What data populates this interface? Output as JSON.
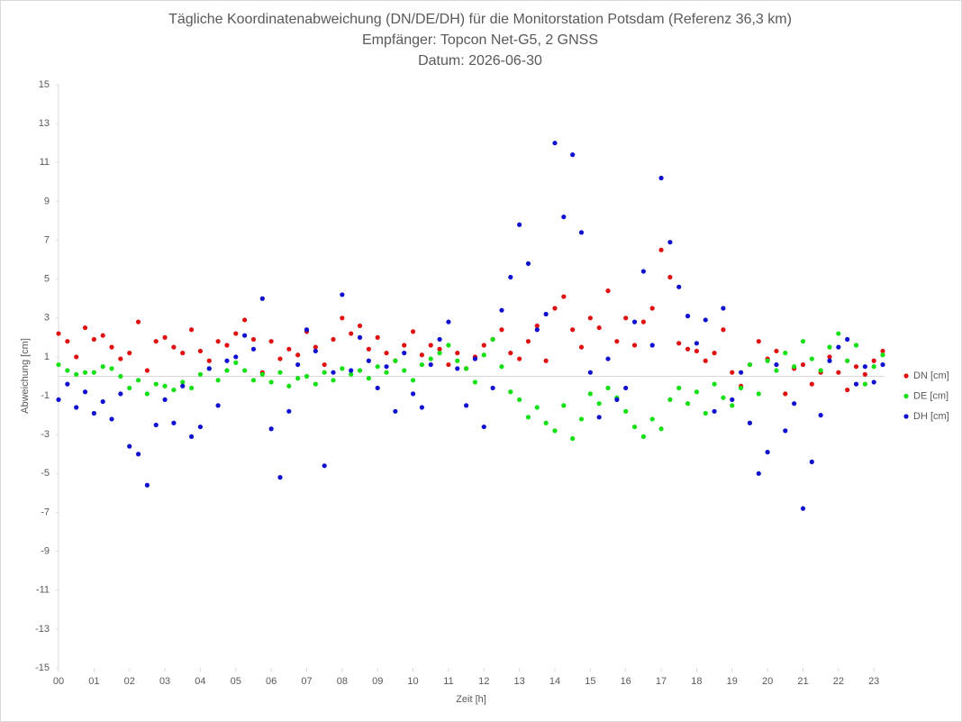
{
  "chart_data": {
    "type": "scatter",
    "title": "Tägliche Koordinatenabweichung (DN/DE/DH) für die Monitorstation Potsdam (Referenz 36,3 km)",
    "subtitle": "Empfänger: Topcon Net-G5, 2 GNSS",
    "date": "Datum: 2026-06-30",
    "x_label": "Zeit [h]",
    "y_label": "Abweichung [cm]",
    "x": [
      0,
      0.25,
      0.5,
      0.75,
      1,
      1.25,
      1.5,
      1.75,
      2,
      2.25,
      2.5,
      2.75,
      3,
      3.25,
      3.5,
      3.75,
      4,
      4.25,
      4.5,
      4.75,
      5,
      5.25,
      5.5,
      5.75,
      6,
      6.25,
      6.5,
      6.75,
      7,
      7.25,
      7.5,
      7.75,
      8,
      8.25,
      8.5,
      8.75,
      9,
      9.25,
      9.5,
      9.75,
      10,
      10.25,
      10.5,
      10.75,
      11,
      11.25,
      11.5,
      11.75,
      12,
      12.25,
      12.5,
      12.75,
      13,
      13.25,
      13.5,
      13.75,
      14,
      14.25,
      14.5,
      14.75,
      15,
      15.25,
      15.5,
      15.75,
      16,
      16.25,
      16.5,
      16.75,
      17,
      17.25,
      17.5,
      17.75,
      18,
      18.25,
      18.5,
      18.75,
      19,
      19.25,
      19.5,
      19.75,
      20,
      20.25,
      20.5,
      20.75,
      21,
      21.25,
      21.5,
      21.75,
      22,
      22.25,
      22.5,
      22.75,
      23,
      23.25
    ],
    "series": [
      {
        "name": "DN [cm]",
        "color": "#e01010",
        "values": [
          2.2,
          1.8,
          1.0,
          2.5,
          1.9,
          2.1,
          1.5,
          0.9,
          1.2,
          2.8,
          0.3,
          1.8,
          2.0,
          1.5,
          1.2,
          2.4,
          1.3,
          0.8,
          1.8,
          1.6,
          2.2,
          2.9,
          1.9,
          0.2,
          1.8,
          0.9,
          1.4,
          1.1,
          2.3,
          1.5,
          0.6,
          1.9,
          3.0,
          2.2,
          2.6,
          1.4,
          2.0,
          1.2,
          0.8,
          1.6,
          2.3,
          1.1,
          1.6,
          1.4,
          0.6,
          1.2,
          0.4,
          1.0,
          1.6,
          1.9,
          2.4,
          1.2,
          0.9,
          1.8,
          2.6,
          0.8,
          3.5,
          4.1,
          2.4,
          1.5,
          3.0,
          2.5,
          4.4,
          1.8,
          3.0,
          1.6,
          2.8,
          3.5,
          6.5,
          5.1,
          1.7,
          1.4,
          1.3,
          0.8,
          1.2,
          2.4,
          0.2,
          -0.5,
          0.6,
          1.8,
          0.9,
          1.3,
          -0.9,
          0.4,
          0.6,
          -0.4,
          0.2,
          1.0,
          0.2,
          -0.7,
          0.5,
          0.1,
          0.8,
          1.3
        ]
      },
      {
        "name": "DE [cm]",
        "color": "#10e010",
        "values": [
          0.6,
          0.3,
          0.1,
          0.2,
          0.2,
          0.5,
          0.4,
          0.0,
          -0.6,
          -0.2,
          -0.9,
          -0.4,
          -0.5,
          -0.7,
          -0.3,
          -0.6,
          0.1,
          0.4,
          -0.2,
          0.3,
          0.7,
          0.3,
          -0.2,
          0.1,
          -0.3,
          0.2,
          -0.5,
          -0.1,
          0.0,
          -0.4,
          0.2,
          -0.2,
          0.4,
          0.1,
          0.3,
          -0.1,
          0.5,
          0.2,
          0.8,
          0.3,
          -0.2,
          0.6,
          0.9,
          1.2,
          1.6,
          0.8,
          0.4,
          -0.3,
          1.1,
          1.9,
          0.5,
          -0.8,
          -1.2,
          -2.1,
          -1.6,
          -2.4,
          -2.8,
          -1.5,
          -3.2,
          -2.2,
          -0.9,
          -1.4,
          -0.6,
          -1.1,
          -1.8,
          -2.6,
          -3.1,
          -2.2,
          -2.7,
          -1.2,
          -0.6,
          -1.4,
          -0.8,
          -1.9,
          -0.4,
          -1.1,
          -1.5,
          -0.6,
          0.6,
          -0.9,
          0.8,
          0.3,
          1.2,
          0.5,
          1.8,
          0.9,
          0.3,
          1.5,
          2.2,
          0.8,
          1.6,
          -0.4,
          0.5,
          1.1
        ]
      },
      {
        "name": "DH [cm]",
        "color": "#1010d0",
        "values": [
          -1.2,
          -0.4,
          -1.6,
          -0.8,
          -1.9,
          -1.3,
          -2.2,
          -0.9,
          -3.6,
          -4.0,
          -5.6,
          -2.5,
          -1.2,
          -2.4,
          -0.5,
          -3.1,
          -2.6,
          0.4,
          -1.5,
          0.8,
          1.0,
          2.1,
          1.4,
          4.0,
          -2.7,
          -5.2,
          -1.8,
          0.6,
          2.4,
          1.3,
          -4.6,
          0.2,
          4.2,
          0.3,
          2.0,
          0.8,
          -0.6,
          0.5,
          -1.8,
          1.2,
          -0.9,
          -1.6,
          0.6,
          1.9,
          2.8,
          0.4,
          -1.5,
          0.9,
          -2.6,
          -0.6,
          3.4,
          5.1,
          7.8,
          5.8,
          2.4,
          3.2,
          12.0,
          8.2,
          11.4,
          7.4,
          0.2,
          -2.1,
          0.9,
          -1.2,
          -0.6,
          2.8,
          5.4,
          1.6,
          10.2,
          6.9,
          4.6,
          3.1,
          1.7,
          2.9,
          -1.8,
          3.5,
          -1.2,
          0.2,
          -2.4,
          -5.0,
          -3.9,
          0.6,
          -2.8,
          -1.4,
          -6.8,
          -4.4,
          -2.0,
          0.8,
          1.5,
          1.9,
          -0.4,
          0.5,
          -0.3,
          0.6
        ]
      }
    ],
    "xlim": [
      0,
      23.3
    ],
    "xticks": [
      {
        "value": 0,
        "label": "00"
      },
      {
        "value": 1,
        "label": "01"
      },
      {
        "value": 2,
        "label": "02"
      },
      {
        "value": 3,
        "label": "03"
      },
      {
        "value": 4,
        "label": "04"
      },
      {
        "value": 5,
        "label": "05"
      },
      {
        "value": 6,
        "label": "06"
      },
      {
        "value": 7,
        "label": "07"
      },
      {
        "value": 8,
        "label": "08"
      },
      {
        "value": 9,
        "label": "09"
      },
      10,
      11,
      12,
      13,
      14,
      15,
      16,
      17,
      18,
      19,
      20,
      21,
      22,
      23
    ],
    "ylim": [
      -15,
      15
    ],
    "yticks": [
      -15,
      -13,
      -11,
      -9,
      -7,
      -5,
      -3,
      -1,
      1,
      3,
      5,
      7,
      9,
      11,
      13,
      15
    ],
    "zero_line": true,
    "grid": false,
    "legend": "right"
  }
}
